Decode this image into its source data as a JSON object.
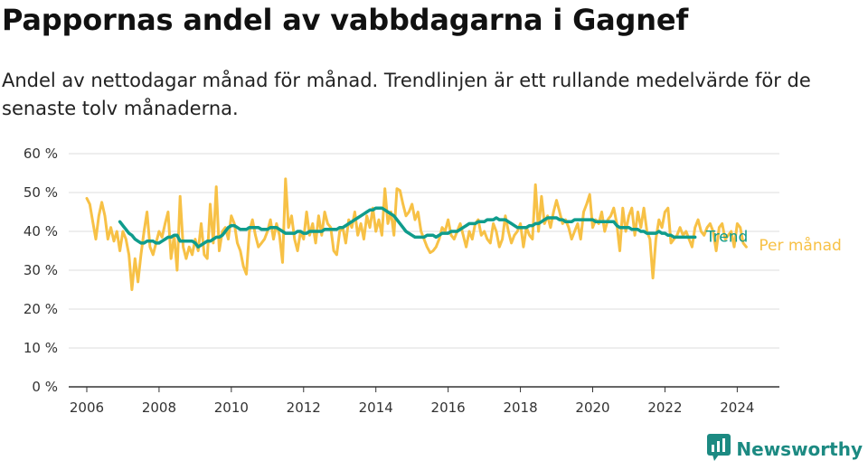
{
  "header": {
    "title": "Pappornas andel av vabbdagarna i Gagnef",
    "subtitle": "Andel av nettodagar månad för månad. Trendlinjen är ett rullande medelvärde för de senaste tolv månaderna."
  },
  "brand": {
    "name": "Newsworthy",
    "icon": "newsworthy-logo-icon"
  },
  "colors": {
    "monthly": "#F7C146",
    "trend": "#0F9C8C",
    "grid": "#dddddd",
    "axis": "#333333"
  },
  "chart_data": {
    "type": "line",
    "title": "Pappornas andel av vabbdagarna i Gagnef",
    "subtitle": "Andel av nettodagar månad för månad. Trendlinjen är ett rullande medelvärde för de senaste tolv månaderna.",
    "xlabel": "",
    "ylabel": "",
    "xlim": [
      "2005-07",
      "2025-03"
    ],
    "ylim": [
      0,
      60
    ],
    "yunit": "%",
    "grid": "horizontal",
    "y_ticks": [
      0,
      10,
      20,
      30,
      40,
      50,
      60
    ],
    "y_tick_labels": [
      "0 %",
      "10 %",
      "20 %",
      "30 %",
      "40 %",
      "50 %",
      "60 %"
    ],
    "x_ticks": [
      "2006-01",
      "2008-01",
      "2010-01",
      "2012-01",
      "2014-01",
      "2016-01",
      "2018-01",
      "2020-01",
      "2022-01",
      "2024-01"
    ],
    "x_tick_labels": [
      "2006",
      "2008",
      "2010",
      "2012",
      "2014",
      "2016",
      "2018",
      "2020",
      "2022",
      "2024"
    ],
    "legend": "inline-right",
    "series": [
      {
        "name": "Per månad",
        "start": "2006-01",
        "values": [
          48.5,
          47,
          42.5,
          38,
          44,
          47.5,
          44,
          38,
          41,
          37.5,
          40,
          35,
          40,
          38,
          34,
          25,
          33,
          27,
          34,
          40,
          45,
          36,
          34,
          37,
          40,
          38.5,
          42,
          45,
          33,
          39,
          30,
          49,
          36,
          33,
          36,
          34,
          38,
          35,
          42,
          34,
          33,
          47,
          37,
          51.5,
          35,
          40,
          41,
          38,
          44,
          42,
          37,
          35,
          31,
          29,
          40,
          43,
          39,
          36,
          37,
          38,
          40,
          43,
          38,
          42,
          39,
          32,
          53.5,
          41,
          44,
          38,
          35,
          40,
          38,
          45,
          39,
          42,
          37,
          44,
          39,
          45,
          42,
          41,
          35,
          34,
          40,
          41,
          37,
          43,
          41,
          45,
          39,
          42,
          38,
          44,
          41,
          46,
          40,
          43,
          39,
          51,
          42,
          45,
          39,
          51,
          50.5,
          47,
          44,
          45,
          47,
          43,
          45,
          40,
          38,
          36,
          34.5,
          35,
          36,
          38,
          41,
          40,
          43,
          39,
          38,
          40,
          42,
          39,
          36,
          40,
          38,
          42,
          43,
          39,
          40,
          38,
          37,
          42,
          40,
          36,
          38,
          44,
          40,
          37,
          39,
          40,
          42,
          36,
          41,
          39,
          38,
          52,
          40,
          49,
          42,
          44,
          41,
          45,
          48,
          45,
          42,
          43,
          41,
          38,
          40,
          42,
          38,
          45,
          47,
          49.5,
          41,
          43,
          42,
          45,
          40,
          43,
          44,
          46,
          42,
          35,
          46,
          40,
          44,
          46,
          39,
          45,
          41,
          46,
          40,
          38,
          28,
          38,
          43,
          41,
          45,
          46,
          37,
          38,
          39,
          41,
          39,
          40,
          38,
          36,
          41,
          43,
          40,
          39,
          41,
          42,
          40,
          35,
          41,
          42,
          38,
          39,
          40,
          36,
          42,
          41,
          37,
          36
        ]
      },
      {
        "name": "Trend",
        "start": "2006-12",
        "values": [
          42.5,
          41.5,
          40.5,
          39.5,
          39,
          38,
          37.5,
          37,
          37,
          37.5,
          37.5,
          37.5,
          37,
          37,
          37.5,
          38,
          38.5,
          38.5,
          39,
          39,
          37.5,
          37.5,
          37.5,
          37.5,
          37.5,
          37,
          36,
          36.5,
          37,
          37.5,
          37.5,
          38,
          38.5,
          38.5,
          39,
          40,
          41,
          41.5,
          41.5,
          41,
          40.5,
          40.5,
          40.5,
          41,
          41,
          41,
          41,
          40.5,
          40.5,
          40.5,
          41,
          41,
          41,
          40.5,
          40,
          39.5,
          39.5,
          39.5,
          39.5,
          40,
          40,
          39.5,
          39.5,
          40,
          40,
          40,
          40,
          40,
          40.5,
          40.5,
          40.5,
          40.5,
          40.5,
          41,
          41,
          41.5,
          42,
          42.5,
          43,
          43.5,
          44,
          44.5,
          45,
          45.5,
          45.5,
          46,
          46,
          46,
          45.5,
          45,
          44.5,
          44,
          43,
          42,
          41,
          40,
          39.5,
          39,
          38.5,
          38.5,
          38.5,
          38.5,
          39,
          39,
          39,
          38.5,
          39,
          39.5,
          39.5,
          39.5,
          40,
          40,
          40,
          40.5,
          41,
          41.5,
          42,
          42,
          42,
          42.5,
          42.5,
          42.5,
          43,
          43,
          43,
          43.5,
          43,
          43,
          43,
          42.5,
          42,
          41.5,
          41,
          41,
          41,
          41,
          41.5,
          41.5,
          42,
          42,
          42.5,
          43,
          43.5,
          43.5,
          43.5,
          43.5,
          43,
          43,
          42.5,
          42.5,
          42.5,
          43,
          43,
          43,
          43,
          43,
          43,
          43,
          42.5,
          42.5,
          42.5,
          42.5,
          42.5,
          42.5,
          42.5,
          41.5,
          41,
          41,
          41,
          41,
          40.5,
          40.5,
          40.5,
          40,
          40,
          39.5,
          39.5,
          39.5,
          39.5,
          40,
          39.5,
          39.5,
          39,
          39,
          38.5,
          38.5,
          38.5,
          38.5,
          38.5,
          38.5,
          38.5,
          38.5
        ]
      }
    ],
    "series_labels": [
      "Trend",
      "Per månad"
    ]
  }
}
